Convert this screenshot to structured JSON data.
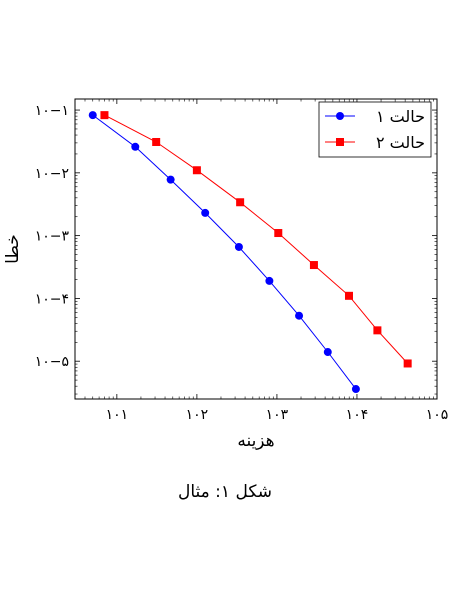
{
  "chart_data": {
    "type": "line",
    "xlabel": "هزینه",
    "ylabel": "خطا",
    "xscale": "log",
    "yscale": "log",
    "xlim": [
      3,
      100000
    ],
    "ylim": [
      2.5e-06,
      0.15
    ],
    "x_ticks": [
      {
        "value": 10,
        "label": "۱۰۱"
      },
      {
        "value": 100,
        "label": "۱۰۲"
      },
      {
        "value": 1000,
        "label": "۱۰۳"
      },
      {
        "value": 10000,
        "label": "۱۰۴"
      },
      {
        "value": 100000,
        "label": "۱۰۵"
      }
    ],
    "y_ticks": [
      {
        "value": 0.1,
        "label": "۱۰−۱"
      },
      {
        "value": 0.01,
        "label": "۱۰−۲"
      },
      {
        "value": 0.001,
        "label": "۱۰−۳"
      },
      {
        "value": 0.0001,
        "label": "۱۰−۴"
      },
      {
        "value": 1e-05,
        "label": "۱۰−۵"
      }
    ],
    "grid": false,
    "legend_position": "top-right",
    "series": [
      {
        "name": "حالت ۱",
        "color": "#0000ff",
        "marker": "circle",
        "x": [
          5,
          17,
          47,
          127,
          335,
          805,
          1890,
          4320,
          9700
        ],
        "y": [
          0.083,
          0.026,
          0.0078,
          0.0023,
          0.00066,
          0.00019,
          5.3e-05,
          1.4e-05,
          3.6e-06
        ]
      },
      {
        "name": "حالت ۲",
        "color": "#ff0000",
        "marker": "square",
        "x": [
          7,
          31,
          100,
          347,
          1040,
          2900,
          7950,
          18000,
          43000
        ],
        "y": [
          0.083,
          0.031,
          0.011,
          0.0034,
          0.0011,
          0.00034,
          0.00011,
          3.1e-05,
          9.2e-06
        ]
      }
    ]
  },
  "caption": "شکل ۱: مثال"
}
